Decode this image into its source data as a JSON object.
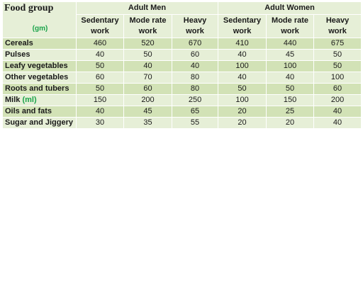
{
  "header": {
    "food_group": "Food group",
    "unit": "(gm)",
    "men": "Adult Men",
    "women": "Adult Women",
    "work_types": [
      [
        "Sedentary",
        "work"
      ],
      [
        "Mode rate",
        "work"
      ],
      [
        "Heavy",
        "work"
      ],
      [
        "Sedentary",
        "work"
      ],
      [
        "Mode rate",
        "work"
      ],
      [
        "Heavy",
        "work"
      ]
    ]
  },
  "rows": [
    {
      "label": "Cereals",
      "unit": "",
      "values": [
        "460",
        "520",
        "670",
        "410",
        "440",
        "675"
      ]
    },
    {
      "label": "Pulses",
      "unit": "",
      "values": [
        "40",
        "50",
        "60",
        "40",
        "45",
        "50"
      ]
    },
    {
      "label": "Leafy vegetables",
      "unit": "",
      "values": [
        "50",
        "40",
        "40",
        "100",
        "100",
        "50"
      ]
    },
    {
      "label": "Other vegetables",
      "unit": "",
      "values": [
        "60",
        "70",
        "80",
        "40",
        "40",
        "100"
      ]
    },
    {
      "label": "Roots and tubers",
      "unit": "",
      "values": [
        "50",
        "60",
        "80",
        "50",
        "50",
        "60"
      ]
    },
    {
      "label": "Milk",
      "unit": "(ml)",
      "values": [
        "150",
        "200",
        "250",
        "100",
        "150",
        "200"
      ]
    },
    {
      "label": "Oils and fats",
      "unit": "",
      "values": [
        "40",
        "45",
        "65",
        "20",
        "25",
        "40"
      ]
    },
    {
      "label": "Sugar and Jiggery",
      "unit": "",
      "values": [
        "30",
        "35",
        "55",
        "20",
        "20",
        "40"
      ]
    }
  ],
  "colors": {
    "light_green": "#e6efd7",
    "mid_green": "#d2e2b6",
    "unit_green": "#1aa34a"
  }
}
